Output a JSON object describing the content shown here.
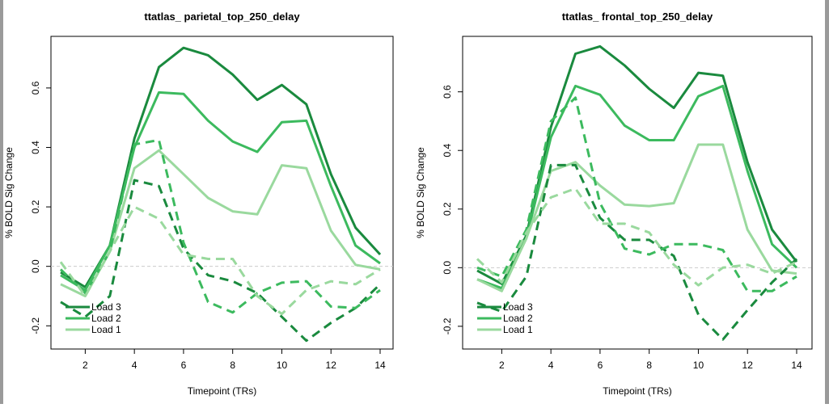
{
  "colors": {
    "load3": "#1a8a3e",
    "load2": "#3cba5e",
    "load1": "#9ad99e",
    "zero_line": "#cccccc",
    "axis": "#000000"
  },
  "chart_data": [
    {
      "type": "line",
      "title": "ttatlas_ parietal_top_250_delay",
      "xlabel": "Timepoint (TRs)",
      "ylabel": "% BOLD Sig Change",
      "xlim": [
        1,
        14
      ],
      "ylim": [
        -0.24,
        0.76
      ],
      "xticks": [
        2,
        4,
        6,
        8,
        10,
        12,
        14
      ],
      "yticks": [
        -0.2,
        0.0,
        0.2,
        0.4,
        0.6
      ],
      "ytick_labels": [
        "-0.2",
        "0.0",
        "0.2",
        "0.4",
        "0.6"
      ],
      "zero_line": true,
      "x": [
        1,
        2,
        3,
        4,
        5,
        6,
        7,
        8,
        9,
        10,
        11,
        12,
        13,
        14
      ],
      "legend": {
        "position": "bottom-left",
        "entries": [
          "Load 3",
          "Load 2",
          "Load 1"
        ]
      },
      "series": [
        {
          "name": "Load 3",
          "style": "solid",
          "color_key": "load3",
          "values": [
            -0.02,
            -0.07,
            0.07,
            0.43,
            0.67,
            0.735,
            0.71,
            0.645,
            0.56,
            0.61,
            0.545,
            0.31,
            0.13,
            0.04
          ]
        },
        {
          "name": "Load 2",
          "style": "solid",
          "color_key": "load2",
          "values": [
            -0.03,
            -0.08,
            0.07,
            0.4,
            0.585,
            0.58,
            0.49,
            0.42,
            0.385,
            0.485,
            0.49,
            0.27,
            0.07,
            0.01
          ]
        },
        {
          "name": "Load 1",
          "style": "solid",
          "color_key": "load1",
          "values": [
            -0.06,
            -0.1,
            0.05,
            0.33,
            0.39,
            0.31,
            0.23,
            0.185,
            0.175,
            0.34,
            0.33,
            0.12,
            0.005,
            -0.01
          ]
        },
        {
          "name": "",
          "style": "dashed",
          "color_key": "load3",
          "values": [
            -0.12,
            -0.17,
            -0.1,
            0.29,
            0.27,
            0.06,
            -0.03,
            -0.05,
            -0.09,
            -0.17,
            -0.25,
            -0.19,
            -0.14,
            -0.06
          ]
        },
        {
          "name": "",
          "style": "dashed",
          "color_key": "load2",
          "values": [
            -0.01,
            -0.09,
            0.05,
            0.41,
            0.425,
            0.08,
            -0.12,
            -0.155,
            -0.09,
            -0.055,
            -0.05,
            -0.135,
            -0.14,
            -0.08
          ]
        },
        {
          "name": "",
          "style": "dashed",
          "color_key": "load1",
          "values": [
            0.015,
            -0.1,
            0.05,
            0.2,
            0.16,
            0.04,
            0.025,
            0.025,
            -0.1,
            -0.16,
            -0.08,
            -0.05,
            -0.06,
            -0.01
          ]
        }
      ]
    },
    {
      "type": "line",
      "title": "ttatlas_ frontal_top_250_delay",
      "xlabel": "Timepoint (TRs)",
      "ylabel": "% BOLD Sig Change",
      "xlim": [
        1,
        14
      ],
      "ylim": [
        -0.25,
        0.77
      ],
      "xticks": [
        2,
        4,
        6,
        8,
        10,
        12,
        14
      ],
      "yticks": [
        -0.2,
        0.0,
        0.2,
        0.4,
        0.6
      ],
      "ytick_labels": [
        "-0.2",
        "0.0",
        "0.2",
        "0.4",
        "0.6"
      ],
      "zero_line": true,
      "x": [
        1,
        2,
        3,
        4,
        5,
        6,
        7,
        8,
        9,
        10,
        11,
        12,
        13,
        14
      ],
      "legend": {
        "position": "bottom-left",
        "entries": [
          "Load 3",
          "Load 2",
          "Load 1"
        ]
      },
      "series": [
        {
          "name": "Load 3",
          "style": "solid",
          "color_key": "load3",
          "values": [
            -0.01,
            -0.055,
            0.11,
            0.48,
            0.73,
            0.755,
            0.69,
            0.61,
            0.545,
            0.665,
            0.655,
            0.36,
            0.13,
            0.02
          ]
        },
        {
          "name": "Load 2",
          "style": "solid",
          "color_key": "load2",
          "values": [
            -0.04,
            -0.07,
            0.1,
            0.445,
            0.62,
            0.59,
            0.485,
            0.435,
            0.435,
            0.585,
            0.62,
            0.33,
            0.08,
            0.0
          ]
        },
        {
          "name": "Load 1",
          "style": "solid",
          "color_key": "load1",
          "values": [
            -0.04,
            -0.08,
            0.1,
            0.33,
            0.36,
            0.28,
            0.215,
            0.21,
            0.22,
            0.42,
            0.42,
            0.13,
            -0.01,
            -0.02
          ]
        },
        {
          "name": "",
          "style": "dashed",
          "color_key": "load3",
          "values": [
            -0.12,
            -0.15,
            -0.03,
            0.35,
            0.35,
            0.17,
            0.095,
            0.095,
            0.04,
            -0.16,
            -0.245,
            -0.145,
            -0.05,
            0.03
          ]
        },
        {
          "name": "",
          "style": "dashed",
          "color_key": "load2",
          "values": [
            0.0,
            -0.03,
            0.13,
            0.5,
            0.58,
            0.22,
            0.065,
            0.045,
            0.08,
            0.08,
            0.06,
            -0.08,
            -0.08,
            -0.03
          ]
        },
        {
          "name": "",
          "style": "dashed",
          "color_key": "load1",
          "values": [
            0.03,
            -0.05,
            0.12,
            0.24,
            0.27,
            0.15,
            0.15,
            0.12,
            0.01,
            -0.06,
            0.0,
            0.01,
            -0.02,
            0.02
          ]
        }
      ]
    }
  ]
}
